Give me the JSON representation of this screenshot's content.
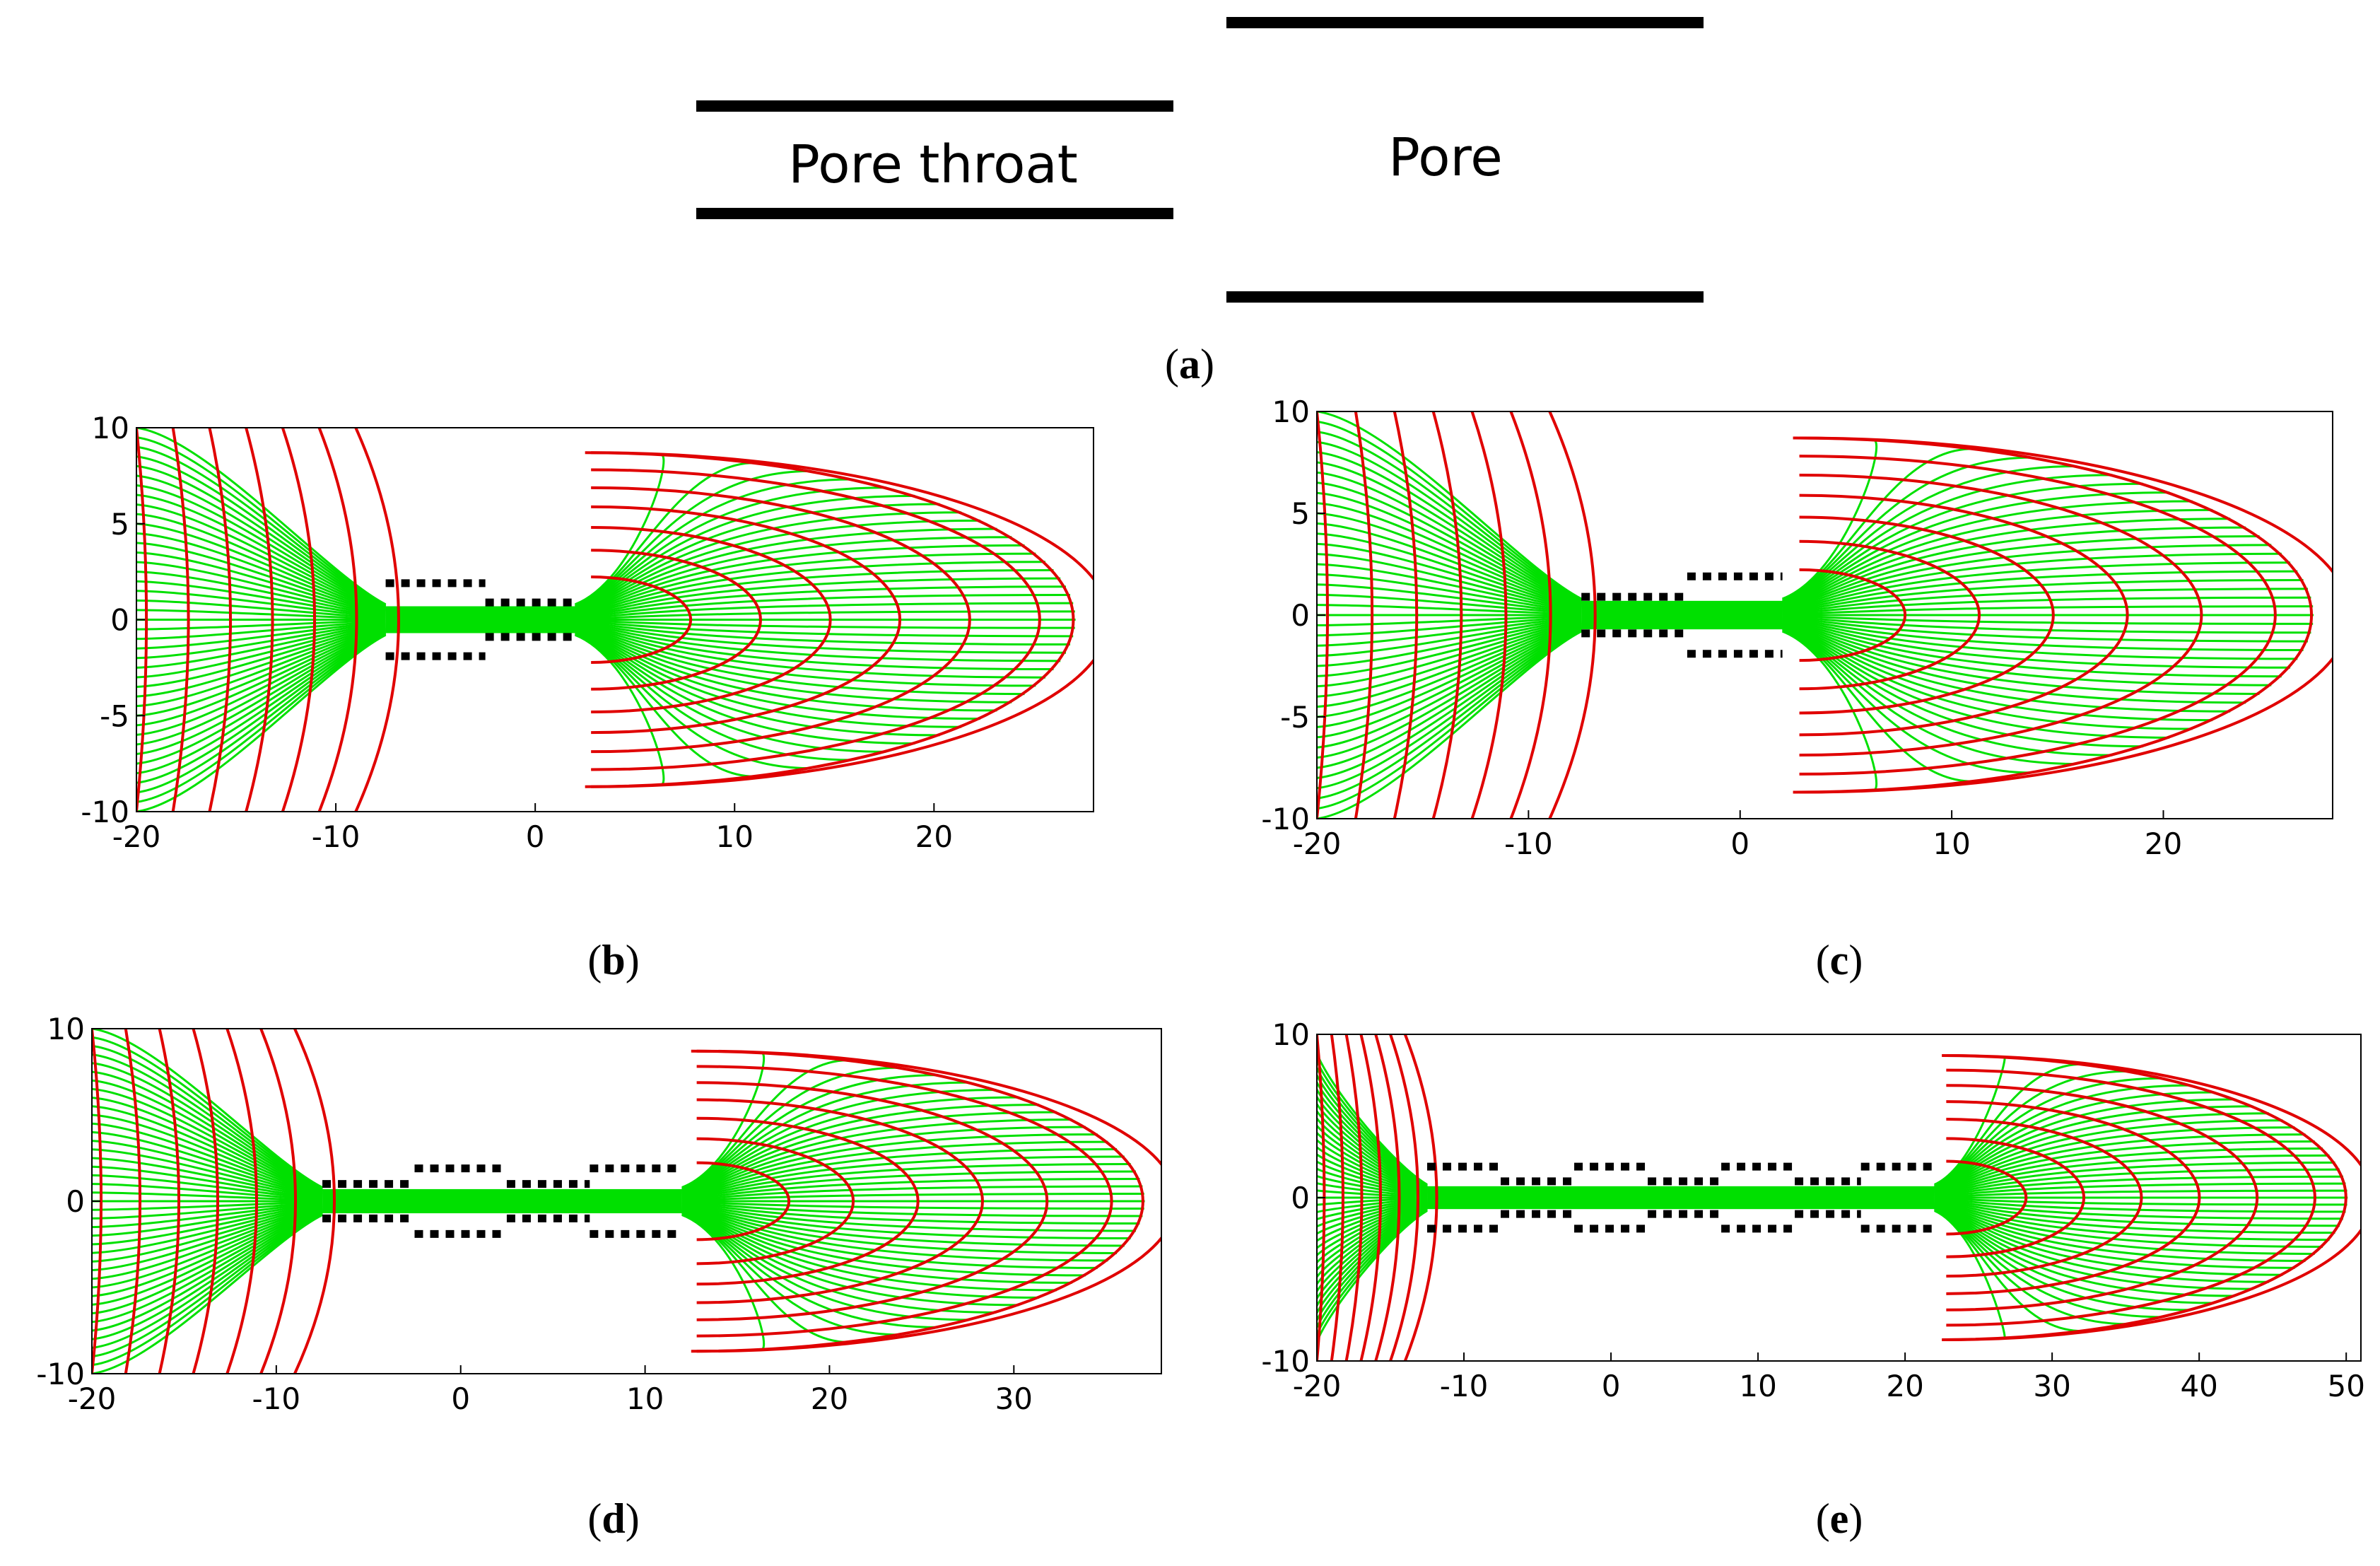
{
  "schematic": {
    "throat_label": "Pore throat",
    "pore_label": "Pore"
  },
  "panels": [
    {
      "id": "b",
      "caption_open": "(",
      "caption_letter": "b",
      "caption_close": ")",
      "xticks": [
        "-20",
        "-10",
        "0",
        "10",
        "20"
      ],
      "yticks": [
        "10",
        "5",
        "0",
        "-5",
        "-10"
      ],
      "xlim": [
        -20,
        28
      ],
      "ylim": [
        -10,
        10
      ],
      "throats": [
        [
          -7.5,
          -2.5,
          1.9
        ],
        [
          -2.5,
          2.0,
          0.9
        ]
      ]
    },
    {
      "id": "c",
      "caption_open": "(",
      "caption_letter": "c",
      "caption_close": ")",
      "xticks": [
        "-20",
        "-10",
        "0",
        "10",
        "20"
      ],
      "yticks": [
        "10",
        "5",
        "0",
        "-5",
        "-10"
      ],
      "xlim": [
        -20,
        28
      ],
      "ylim": [
        -10,
        10
      ],
      "throats": [
        [
          -7.5,
          -2.5,
          0.9
        ],
        [
          -2.5,
          2.0,
          1.9
        ]
      ]
    },
    {
      "id": "d",
      "caption_open": "(",
      "caption_letter": "d",
      "caption_close": ")",
      "xticks": [
        "-20",
        "-10",
        "0",
        "10",
        "20",
        "30"
      ],
      "yticks": [
        "10",
        "0",
        "-10"
      ],
      "xlim": [
        -20,
        38
      ],
      "ylim": [
        -10,
        10
      ],
      "throats": [
        [
          -7.5,
          -2.5,
          1.0
        ],
        [
          -2.5,
          2.5,
          1.9
        ],
        [
          2.5,
          7.0,
          1.0
        ],
        [
          7.0,
          12.0,
          1.9
        ]
      ]
    },
    {
      "id": "e",
      "caption_open": "(",
      "caption_letter": "e",
      "caption_close": ")",
      "xticks": [
        "-20",
        "-10",
        "0",
        "10",
        "20",
        "30",
        "40",
        "50"
      ],
      "yticks": [
        "10",
        "0",
        "-10"
      ],
      "xlim": [
        -20,
        51
      ],
      "ylim": [
        -10,
        10
      ],
      "throats": [
        [
          -12.5,
          -7.5,
          1.9
        ],
        [
          -7.5,
          -2.5,
          1.0
        ],
        [
          -2.5,
          2.5,
          1.9
        ],
        [
          2.5,
          7.5,
          1.0
        ],
        [
          7.5,
          12.5,
          1.9
        ],
        [
          12.5,
          17.0,
          1.0
        ],
        [
          17.0,
          22.0,
          1.9
        ]
      ]
    }
  ],
  "caption_a": {
    "open": "(",
    "letter": "a",
    "close": ")"
  },
  "colors": {
    "streamline": "#00e000",
    "equipotential": "#e00000",
    "wall": "#000000",
    "axes": "#000000"
  }
}
